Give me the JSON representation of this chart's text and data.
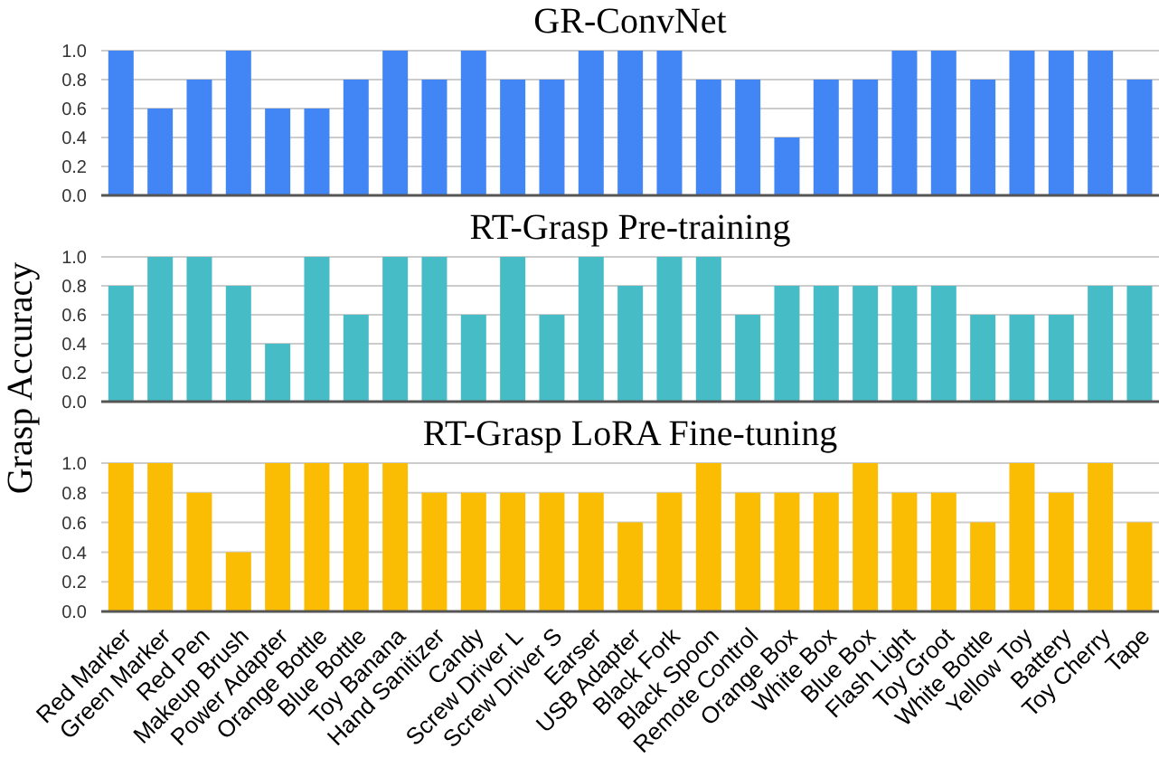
{
  "chart_data": [
    {
      "type": "bar",
      "title": "GR-ConvNet",
      "categories": [
        null,
        null,
        null,
        null,
        null,
        null,
        null,
        null,
        null,
        null,
        null,
        null,
        null,
        null,
        null,
        null,
        null,
        null,
        null,
        null,
        null,
        null,
        null,
        null,
        null,
        null,
        null
      ],
      "values": [
        1,
        0.6,
        0.8,
        1,
        0.6,
        0.6,
        0.8,
        1,
        0.8,
        1,
        0.8,
        0.8,
        1,
        1,
        1,
        0.8,
        0.8,
        0.4,
        0.8,
        0.8,
        1,
        1,
        0.8,
        1,
        1,
        1,
        0.8
      ],
      "color": "#4285f4",
      "ylim": [
        0,
        1
      ],
      "yticks": [
        {
          "value": 0,
          "label": "0.0"
        },
        {
          "value": 0.2,
          "label": "0.2"
        },
        {
          "value": 0.4,
          "label": "0.4"
        },
        {
          "value": 0.6,
          "label": "0.6"
        },
        {
          "value": 0.8,
          "label": "0.8"
        },
        {
          "value": 1,
          "label": "1.0"
        }
      ],
      "grid": "y",
      "tick_labels": "y"
    },
    {
      "type": "bar",
      "title": "RT-Grasp Pre-training",
      "ylabel": "Grasp Accuracy",
      "categories": [
        null,
        null,
        null,
        null,
        null,
        null,
        null,
        null,
        null,
        null,
        null,
        null,
        null,
        null,
        null,
        null,
        null,
        null,
        null,
        null,
        null,
        null,
        null,
        null,
        null,
        null,
        null
      ],
      "values": [
        0.8,
        1,
        1,
        0.8,
        0.4,
        1,
        0.6,
        1,
        1,
        0.6,
        1,
        0.6,
        1,
        0.8,
        1,
        1,
        0.6,
        0.8,
        0.8,
        0.8,
        0.8,
        0.8,
        0.6,
        0.6,
        0.6,
        0.8,
        0.8
      ],
      "color": "#46bdc6",
      "ylim": [
        0,
        1
      ],
      "yticks": [
        {
          "value": 0,
          "label": "0.0"
        },
        {
          "value": 0.2,
          "label": "0.2"
        },
        {
          "value": 0.4,
          "label": "0.4"
        },
        {
          "value": 0.6,
          "label": "0.6"
        },
        {
          "value": 0.8,
          "label": "0.8"
        },
        {
          "value": 1,
          "label": "1.0"
        }
      ],
      "grid": "y",
      "tick_labels": "y"
    },
    {
      "type": "bar",
      "title": "RT-Grasp LoRA Fine-tuning",
      "categories": [
        "Red Marker",
        "Green Marker",
        "Red Pen",
        "Makeup Brush",
        "Power Adapter",
        "Orange Bottle",
        "Blue Bottle",
        "Toy Banana",
        "Hand Sanitizer",
        "Candy",
        "Screw Driver L",
        "Screw Driver S",
        "Earser",
        "USB Adapter",
        "Black Fork",
        "Black Spoon",
        "Remote Control",
        "Orange Box",
        "White Box",
        "Blue Box",
        "Flash Light",
        "Toy Groot",
        "White Bottle",
        "Yellow Toy",
        "Battery",
        "Toy Cherry",
        "Tape"
      ],
      "values": [
        1,
        1,
        0.8,
        0.4,
        1,
        1,
        1,
        1,
        0.8,
        0.8,
        0.8,
        0.8,
        0.8,
        0.6,
        0.8,
        1,
        0.8,
        0.8,
        0.8,
        1,
        0.8,
        0.8,
        0.6,
        1,
        0.8,
        1,
        0.6
      ],
      "color": "#fbbc04",
      "ylim": [
        0,
        1
      ],
      "yticks": [
        {
          "value": 0,
          "label": "0.0"
        },
        {
          "value": 0.2,
          "label": "0.2"
        },
        {
          "value": 0.4,
          "label": "0.4"
        },
        {
          "value": 0.6,
          "label": "0.6"
        },
        {
          "value": 0.8,
          "label": "0.8"
        },
        {
          "value": 1,
          "label": "1.0"
        }
      ],
      "grid": "y"
    }
  ]
}
